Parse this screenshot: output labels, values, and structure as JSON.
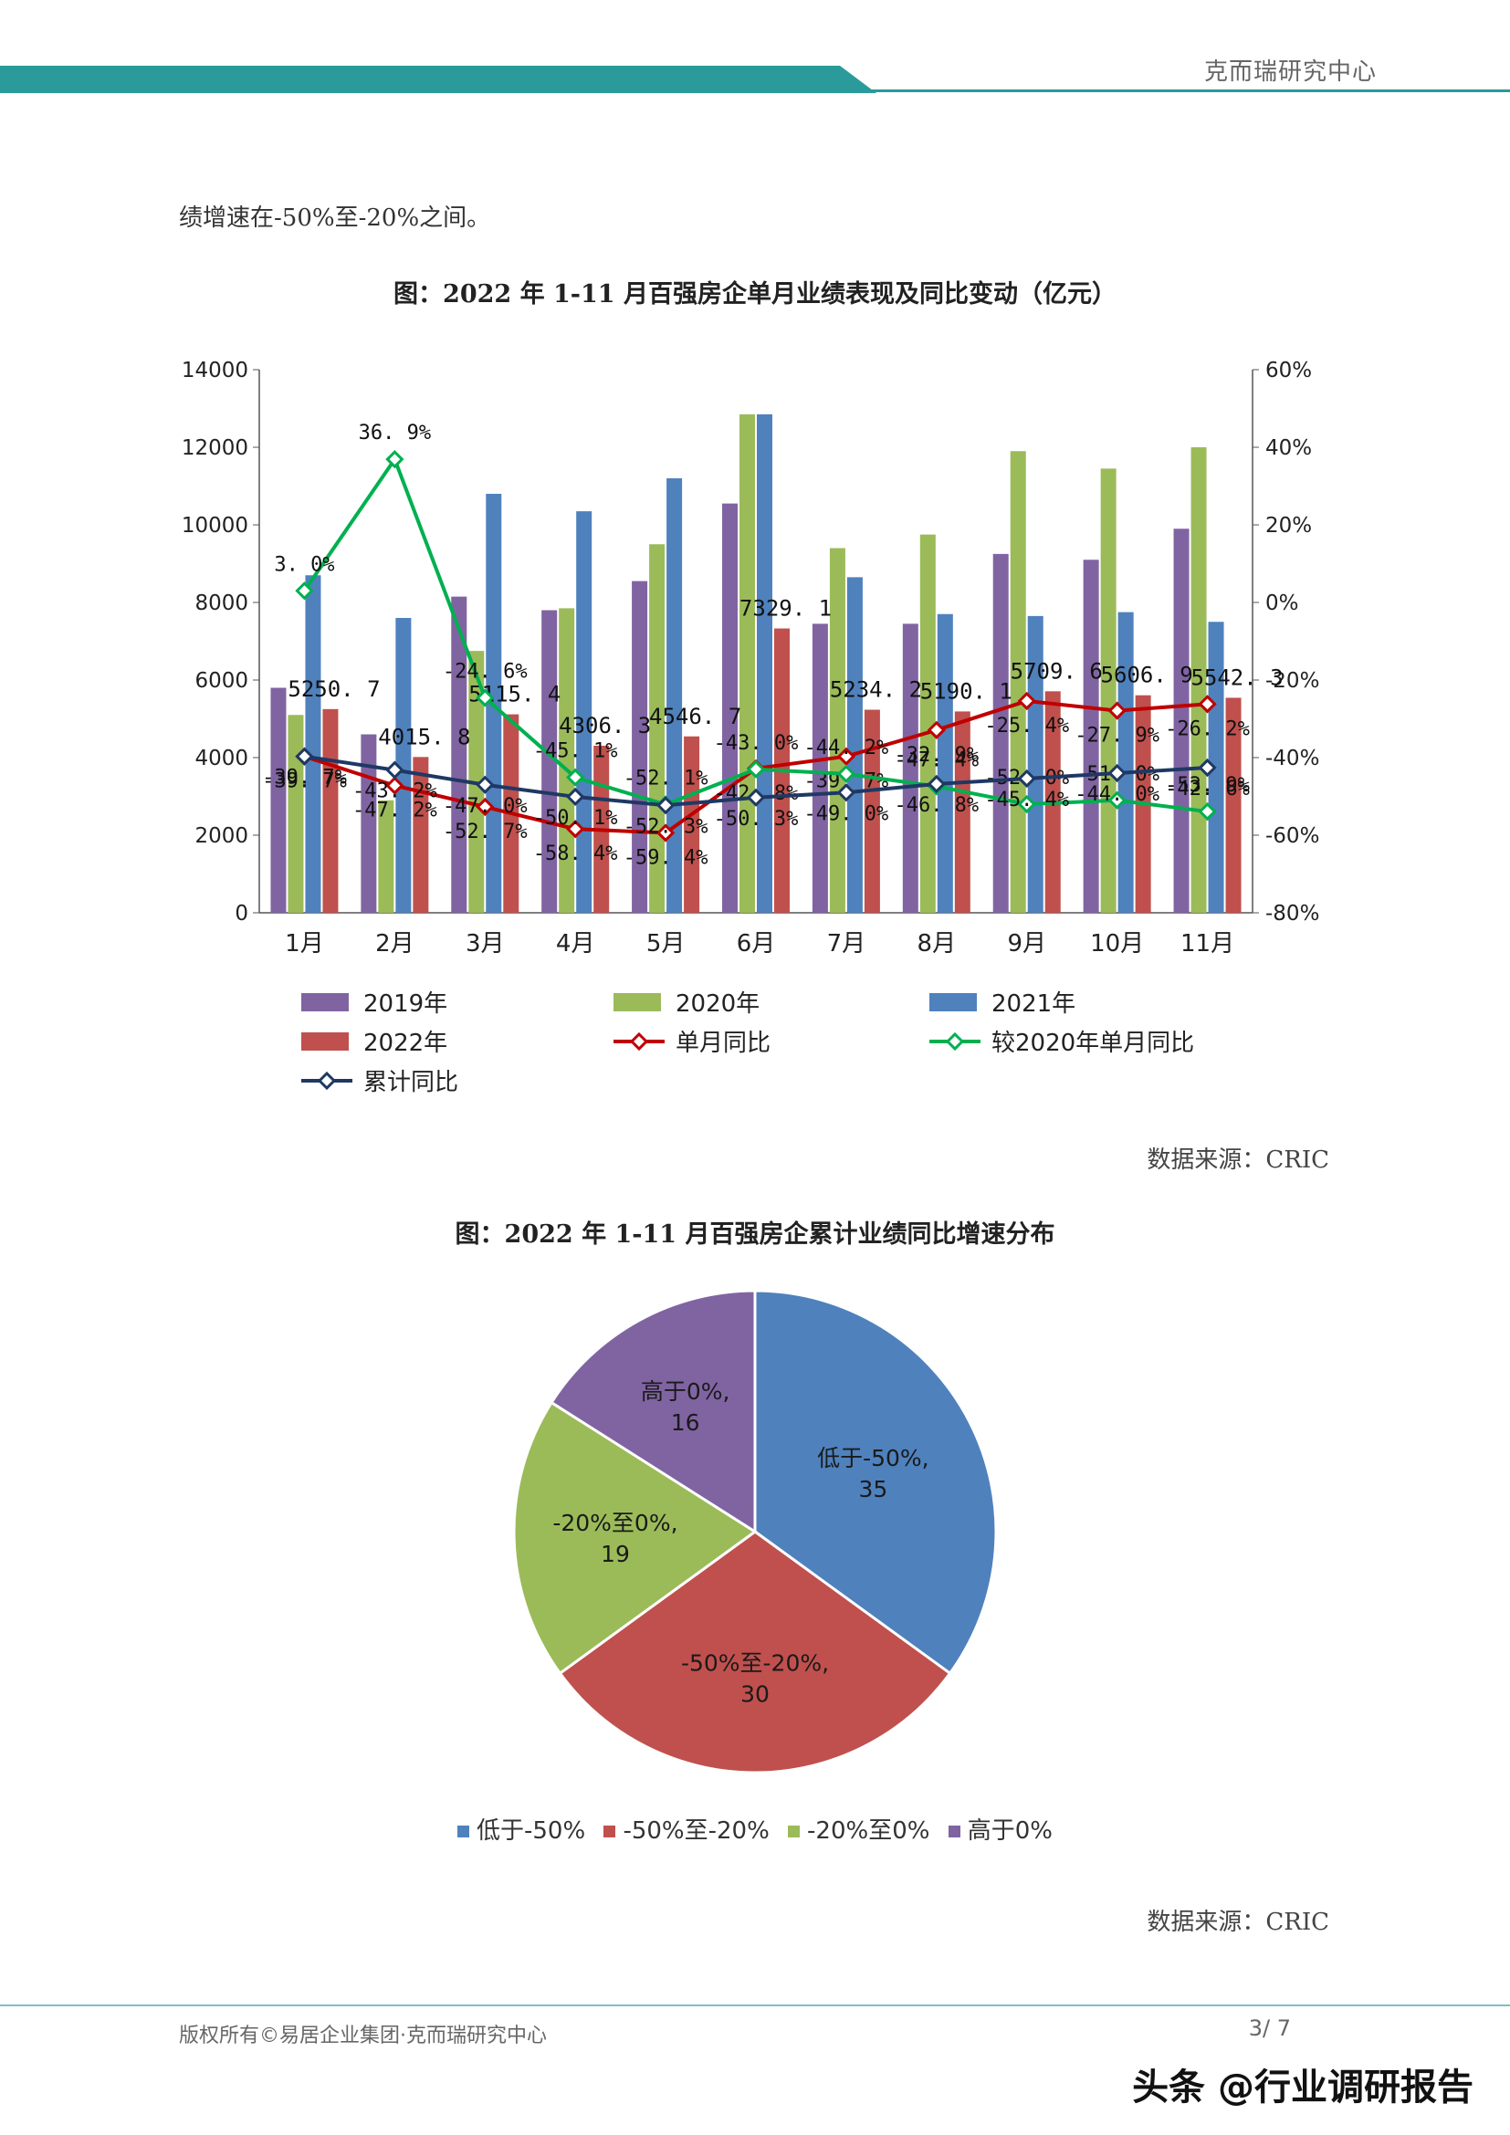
{
  "header": {
    "title": "克而瑞研究中心",
    "accent": "#2a9a9a"
  },
  "body_text": "绩增速在-50%至-20%之间。",
  "figure1": {
    "title": "图：2022 年 1-11 月百强房企单月业绩表现及同比变动（亿元）",
    "source": "数据来源：CRIC"
  },
  "figure2": {
    "title": "图：2022 年 1-11 月百强房企累计业绩同比增速分布",
    "source": "数据来源：CRIC"
  },
  "footer": {
    "copyright": "版权所有©易居企业集团·克而瑞研究中心",
    "page": "3/ 7",
    "brand": "头条 @行业调研报告"
  },
  "chart_data": [
    {
      "type": "bar",
      "categories": [
        "1月",
        "2月",
        "3月",
        "4月",
        "5月",
        "6月",
        "7月",
        "8月",
        "9月",
        "10月",
        "11月"
      ],
      "ylim": [
        0,
        14000
      ],
      "y_ticks": [
        "0",
        "2000",
        "4000",
        "6000",
        "8000",
        "10000",
        "12000",
        "14000"
      ],
      "y2lim": [
        -80,
        60
      ],
      "y2_ticks": [
        "-80%",
        "-60%",
        "-40%",
        "-20%",
        "0%",
        "20%",
        "40%",
        "60%"
      ],
      "series": [
        {
          "name": "2019年",
          "kind": "bar",
          "color": "#8064a2",
          "values": [
            5800,
            4600,
            8150,
            7800,
            8550,
            10550,
            7450,
            7450,
            9250,
            9100,
            9900
          ]
        },
        {
          "name": "2020年",
          "kind": "bar",
          "color": "#9bbb59",
          "values": [
            5100,
            2900,
            6750,
            7850,
            9500,
            12850,
            9400,
            9750,
            11900,
            11450,
            12000
          ]
        },
        {
          "name": "2021年",
          "kind": "bar",
          "color": "#4f81bd",
          "values": [
            8700,
            7600,
            10800,
            10350,
            11200,
            12850,
            8650,
            7700,
            7650,
            7750,
            7500
          ]
        },
        {
          "name": "2022年",
          "kind": "bar",
          "color": "#c0504d",
          "values": [
            5250.7,
            4015.8,
            5115.4,
            4306.3,
            4546.7,
            7329.1,
            5234.2,
            5190.1,
            5709.6,
            5606.9,
            5542.3
          ],
          "labels": [
            "5250. 7",
            "4015. 8",
            "5115. 4",
            "4306. 3",
            "4546. 7",
            "7329. 1",
            "5234. 2",
            "5190. 1",
            "5709. 6",
            "5606. 9",
            "5542. 3"
          ]
        },
        {
          "name": "单月同比",
          "kind": "line",
          "color": "#c00000",
          "values": [
            -39.7,
            -47.2,
            -52.7,
            -58.4,
            -59.4,
            -42.8,
            -39.7,
            -32.9,
            -25.4,
            -27.9,
            -26.2
          ],
          "labels": [
            "-39. 7%",
            "-47. 2%",
            "-52. 7%",
            "-58. 4%",
            "-59. 4%",
            "-42. 8%",
            "-39. 7%",
            "-32. 9%",
            "-25. 4%",
            "-27. 9%",
            "-26. 2%"
          ]
        },
        {
          "name": "较2020年单月同比",
          "kind": "line",
          "color": "#00b050",
          "values": [
            3.0,
            36.9,
            -24.6,
            -45.1,
            -52.1,
            -43.0,
            -44.2,
            -47.4,
            -52.0,
            -51.0,
            -53.9
          ],
          "labels": [
            "3. 0%",
            "36. 9%",
            "-24. 6%",
            "-45. 1%",
            "-52. 1%",
            "-43. 0%",
            "-44. 2%",
            "-47. 4%",
            "-52. 0%",
            "-51. 0%",
            "-53. 9%"
          ]
        },
        {
          "name": "累计同比",
          "kind": "line",
          "color": "#1f3864",
          "values": [
            -39.7,
            -43.2,
            -47.0,
            -50.1,
            -52.3,
            -50.3,
            -49.0,
            -46.8,
            -45.4,
            -44.0,
            -42.6
          ],
          "labels": [
            "-39. 7%",
            "-43. 2%",
            "-47. 0%",
            "-50. 1%",
            "-52. 3%",
            "-50. 3%",
            "-49. 0%",
            "-46. 8%",
            "-45. 4%",
            "-44. 0%",
            "-42. 6%"
          ]
        }
      ]
    },
    {
      "type": "pie",
      "categories": [
        "低于-50%",
        "-50%至-20%",
        "-20%至0%",
        "高于0%"
      ],
      "values": [
        35,
        30,
        19,
        16
      ],
      "colors": [
        "#4f81bd",
        "#c0504d",
        "#9bbb59",
        "#8064a2"
      ]
    }
  ]
}
